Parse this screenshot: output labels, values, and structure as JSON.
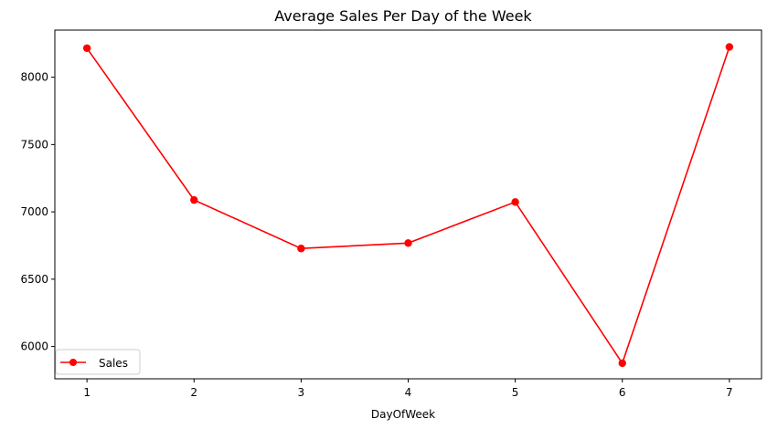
{
  "chart_data": {
    "type": "line",
    "title": "Average Sales Per Day of the Week",
    "xlabel": "DayOfWeek",
    "ylabel": "",
    "x": [
      1,
      2,
      3,
      4,
      5,
      6,
      7
    ],
    "xticks": [
      "1",
      "2",
      "3",
      "4",
      "5",
      "6",
      "7"
    ],
    "yticks": [
      6000,
      6500,
      7000,
      7500,
      8000
    ],
    "ytick_labels": [
      "6000",
      "6500",
      "7000",
      "7500",
      "8000"
    ],
    "xlim": [
      0.7,
      7.3
    ],
    "ylim": [
      5760,
      8350
    ],
    "series": [
      {
        "name": "Sales",
        "values": [
          8216,
          7088,
          6728,
          6768,
          7073,
          5876,
          8225
        ],
        "color": "#ff0000",
        "marker": "circle"
      }
    ],
    "legend": {
      "position": "lower-left"
    },
    "grid": false
  }
}
